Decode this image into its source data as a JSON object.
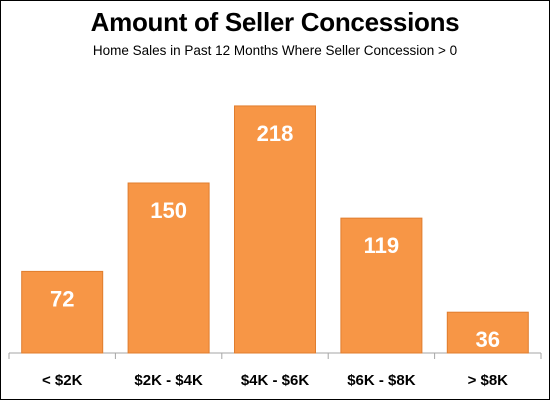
{
  "chart_data": {
    "type": "bar",
    "title": "Amount of Seller Concessions",
    "subtitle": "Home Sales in Past 12 Months Where Seller Concession > 0",
    "categories": [
      "< $2K",
      "$2K - $4K",
      "$4K - $6K",
      "$6K - $8K",
      "> $8K"
    ],
    "values": [
      72,
      150,
      218,
      119,
      36
    ],
    "data_labels": [
      "72",
      "150",
      "218",
      "119",
      "36"
    ],
    "xlabel": "",
    "ylabel": "",
    "ylim": [
      0,
      240
    ],
    "grid": false,
    "legend": "none",
    "colors": {
      "bar_fill": "#F79646",
      "bar_stroke": "#E07D2E",
      "data_label": "#FFFFFF",
      "axis": "#A6A6A6"
    }
  }
}
